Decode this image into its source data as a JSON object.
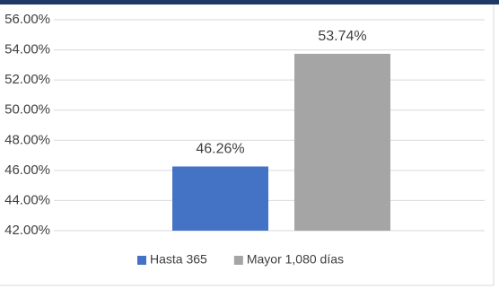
{
  "chart_data": {
    "type": "bar",
    "categories": [
      null
    ],
    "series": [
      {
        "name": "Hasta 365",
        "color": "#4472c4",
        "values": [
          46.26
        ],
        "value_labels": [
          "46.26%"
        ]
      },
      {
        "name": "Mayor 1,080 días",
        "color": "#a5a5a5",
        "values": [
          53.74
        ],
        "value_labels": [
          "53.74%"
        ]
      }
    ],
    "ylim": [
      42,
      56
    ],
    "yticks": [
      {
        "value": 42,
        "label": "42.00%"
      },
      {
        "value": 44,
        "label": "44.00%"
      },
      {
        "value": 46,
        "label": "46.00%"
      },
      {
        "value": 48,
        "label": "48.00%"
      },
      {
        "value": 50,
        "label": "50.00%"
      },
      {
        "value": 52,
        "label": "52.00%"
      },
      {
        "value": 54,
        "label": "54.00%"
      },
      {
        "value": 56,
        "label": "56.00%"
      }
    ],
    "grid": true,
    "legend": "bottom"
  }
}
